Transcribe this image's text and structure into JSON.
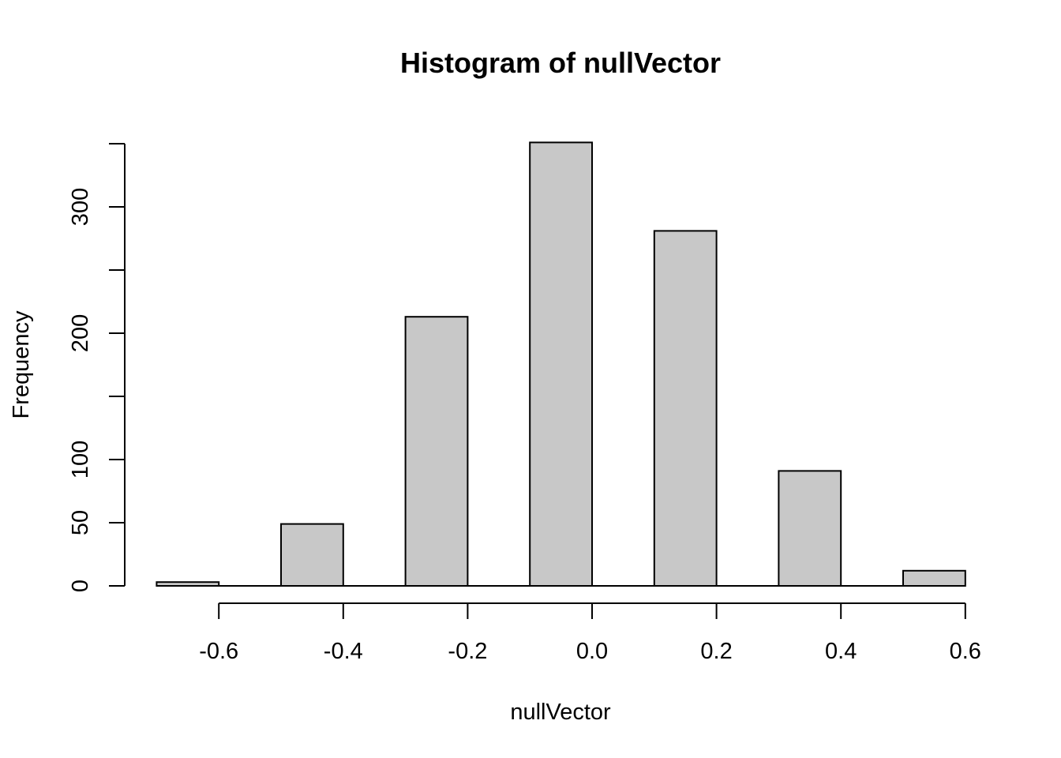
{
  "chart_data": {
    "type": "bar",
    "title": "Histogram of nullVector",
    "xlabel": "nullVector",
    "ylabel": "Frequency",
    "bins": [
      {
        "start": -0.7,
        "end": -0.6,
        "count": 3
      },
      {
        "start": -0.6,
        "end": -0.5,
        "count": 0
      },
      {
        "start": -0.5,
        "end": -0.4,
        "count": 49
      },
      {
        "start": -0.4,
        "end": -0.3,
        "count": 0
      },
      {
        "start": -0.3,
        "end": -0.2,
        "count": 213
      },
      {
        "start": -0.2,
        "end": -0.1,
        "count": 0
      },
      {
        "start": -0.1,
        "end": 0.0,
        "count": 351
      },
      {
        "start": 0.0,
        "end": 0.1,
        "count": 0
      },
      {
        "start": 0.1,
        "end": 0.2,
        "count": 281
      },
      {
        "start": 0.2,
        "end": 0.3,
        "count": 0
      },
      {
        "start": 0.3,
        "end": 0.4,
        "count": 91
      },
      {
        "start": 0.4,
        "end": 0.5,
        "count": 0
      },
      {
        "start": 0.5,
        "end": 0.6,
        "count": 12
      }
    ],
    "xlim": [
      -0.7,
      0.6
    ],
    "ylim": [
      0,
      350
    ],
    "x_ticks": [
      -0.6,
      -0.4,
      -0.2,
      0.0,
      0.2,
      0.4,
      0.6
    ],
    "x_tick_labels": [
      "-0.6",
      "-0.4",
      "-0.2",
      "0.0",
      "0.2",
      "0.4",
      "0.6"
    ],
    "y_ticks": [
      0,
      50,
      100,
      150,
      200,
      250,
      300,
      350
    ],
    "y_tick_labels": [
      "0",
      "50",
      "100",
      "",
      "200",
      "",
      "300",
      ""
    ],
    "grid": false,
    "legend": "none",
    "colors": {
      "bar_fill": "#c8c8c8",
      "bar_stroke": "#000000"
    }
  }
}
